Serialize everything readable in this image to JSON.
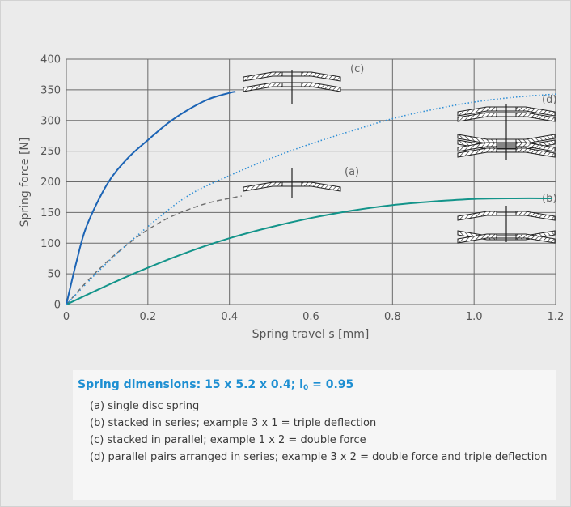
{
  "chart_data": {
    "type": "line",
    "xlabel": "Spring travel s [mm]",
    "ylabel": "Spring force [N]",
    "xlim": [
      0,
      1.2
    ],
    "ylim": [
      0,
      400
    ],
    "x_ticks": [
      "0",
      "0.2",
      "0.4",
      "0.6",
      "0.8",
      "1.0",
      "1.2"
    ],
    "y_ticks": [
      "0",
      "50",
      "100",
      "150",
      "200",
      "250",
      "300",
      "350",
      "400"
    ],
    "grid": true,
    "series": [
      {
        "label": "(a)",
        "color": "#6e6e6e",
        "style": "dashed",
        "x": [
          0,
          0.05,
          0.1,
          0.15,
          0.2,
          0.25,
          0.3,
          0.35,
          0.4,
          0.43
        ],
        "y": [
          0,
          37,
          70,
          98,
          122,
          141,
          155,
          166,
          173,
          177
        ]
      },
      {
        "label": "(b)",
        "color": "#13948a",
        "style": "solid",
        "x": [
          0,
          0.1,
          0.2,
          0.3,
          0.4,
          0.5,
          0.6,
          0.7,
          0.8,
          0.9,
          1.0,
          1.1,
          1.19
        ],
        "y": [
          0,
          31,
          60,
          86,
          108,
          126,
          141,
          153,
          162,
          168,
          172,
          173,
          173
        ]
      },
      {
        "label": "(c)",
        "color": "#1c64b5",
        "style": "solid",
        "x": [
          0,
          0.025,
          0.05,
          0.1,
          0.15,
          0.2,
          0.25,
          0.3,
          0.35,
          0.4,
          0.415
        ],
        "y": [
          0,
          70,
          128,
          196,
          238,
          268,
          296,
          318,
          335,
          345,
          347
        ]
      },
      {
        "label": "(d)",
        "color": "#2f8fd6",
        "style": "dotted",
        "x": [
          0,
          0.1,
          0.2,
          0.3,
          0.4,
          0.5,
          0.6,
          0.7,
          0.8,
          0.9,
          1.0,
          1.1,
          1.2
        ],
        "y": [
          0,
          68,
          127,
          178,
          210,
          238,
          262,
          283,
          303,
          318,
          330,
          338,
          343
        ]
      }
    ]
  },
  "legend": {
    "title_main": "Spring dimensions: 15 x 5.2 x 0.4; l",
    "title_sub": "0",
    "title_end": " = 0.95",
    "items": [
      "(a) single disc spring",
      "(b) stacked in series; example 3 x 1 = triple deflection",
      "(c) stacked in parallel; example  1 x 2 = double force",
      "(d) parallel pairs arranged in series; example 3 x 2 = double force and triple deflection"
    ]
  }
}
